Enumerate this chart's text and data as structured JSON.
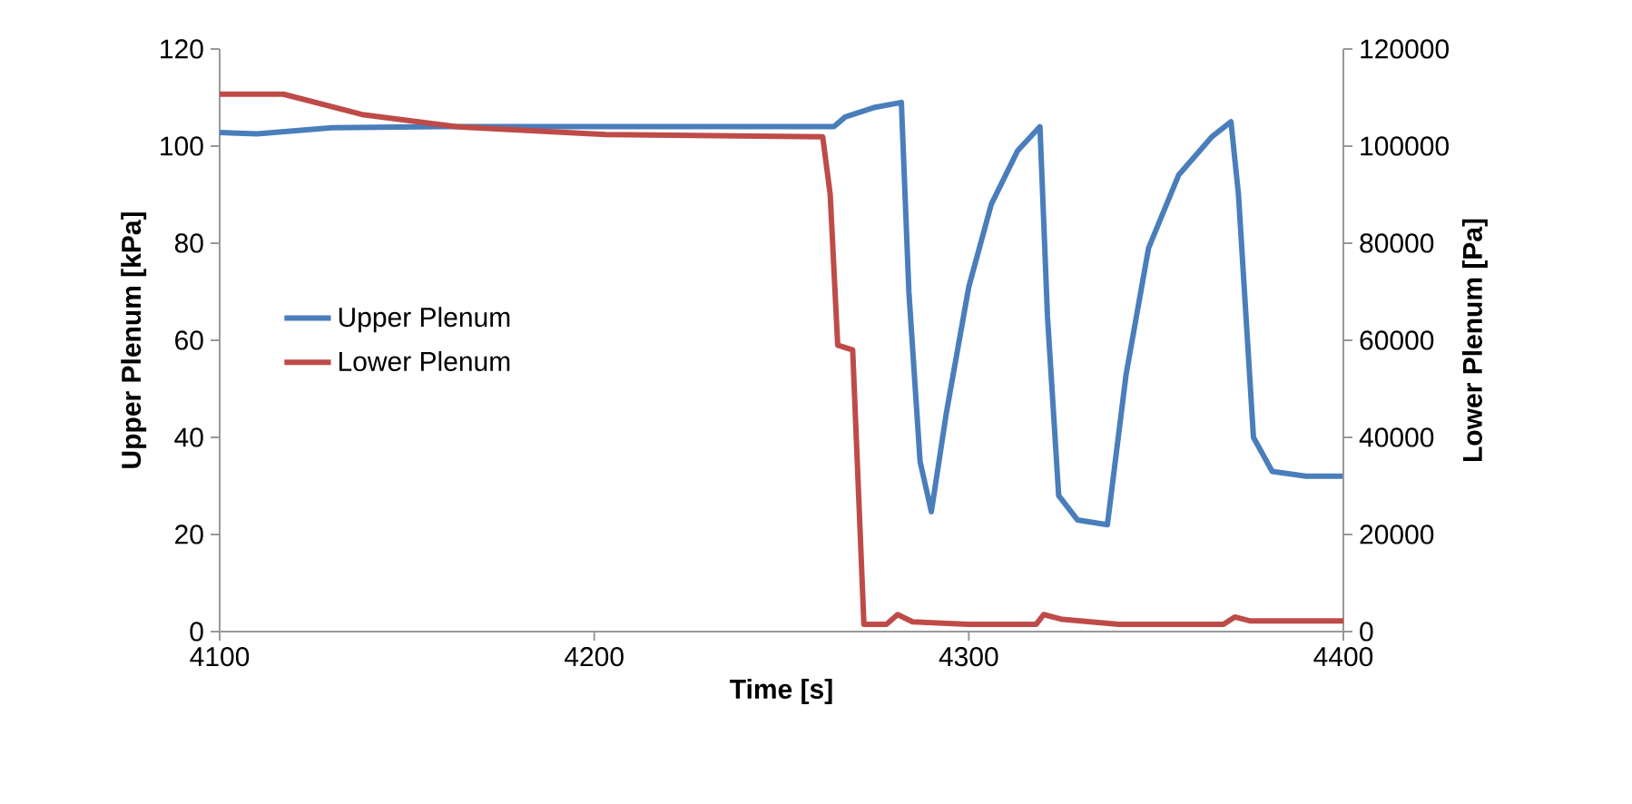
{
  "chart_data": {
    "type": "line",
    "xlabel": "Time [s]",
    "ylabel": "Upper Plenum [kPa]",
    "y2label": "Lower Plenum [Pa]",
    "xlim": [
      4100,
      4400
    ],
    "xticks": [
      4100,
      4200,
      4300,
      4400
    ],
    "ylim": [
      0,
      120
    ],
    "yticks": [
      0,
      20,
      40,
      60,
      80,
      100,
      120
    ],
    "y2lim": [
      0,
      120000
    ],
    "y2ticks": [
      0,
      20000,
      40000,
      60000,
      80000,
      100000,
      120000
    ],
    "legend": "left",
    "grid": false,
    "series": [
      {
        "name": "Upper Plenum",
        "color": "#4a7ebb",
        "x": [
          4100,
          4110,
          4130,
          4160,
          4200,
          4240,
          4264,
          4267,
          4275,
          4282,
          4284,
          4287,
          4290,
          4294,
          4300,
          4306,
          4313,
          4319,
          4321,
          4324,
          4329,
          4337,
          4342,
          4348,
          4356,
          4365,
          4370,
          4372,
          4376,
          4381,
          4390,
          4400
        ],
        "values": [
          102.8,
          102.5,
          103.8,
          104,
          104,
          104,
          104,
          106,
          108,
          109,
          70,
          35,
          24.7,
          45,
          71,
          88,
          99,
          104,
          65,
          28,
          23,
          22,
          53,
          79,
          94,
          102,
          105,
          90,
          40,
          33,
          32,
          32
        ]
      },
      {
        "name": "Lower Plenum",
        "color": "#be4b48",
        "axis": "y2",
        "x": [
          4100,
          4117,
          4138,
          4163,
          4203,
          4261,
          4263,
          4265,
          4269,
          4272,
          4278,
          4281,
          4285,
          4300,
          4318,
          4320,
          4325,
          4340,
          4368,
          4371,
          4375,
          4400
        ],
        "values": [
          110700,
          110700,
          106500,
          104000,
          102400,
          101900,
          90000,
          59000,
          58000,
          1500,
          1500,
          3500,
          2000,
          1500,
          1500,
          3500,
          2500,
          1500,
          1500,
          3000,
          2200,
          2200
        ]
      }
    ]
  }
}
